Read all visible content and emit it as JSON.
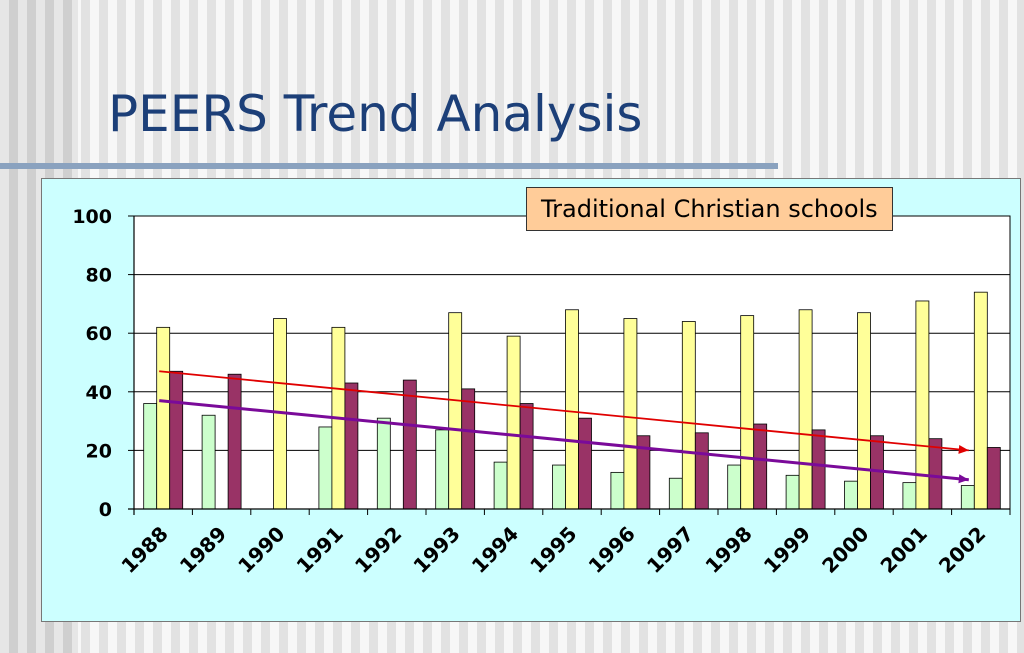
{
  "slide": {
    "title": "PEERS Trend Analysis"
  },
  "colors": {
    "background": "#f4f4f4",
    "title": "#1c3f78",
    "title_rule": "#8aa2bf",
    "plot_area": "#ccffff",
    "series": [
      "#ccffcc",
      "#ffff99",
      "#993366"
    ],
    "trend_red": "#e00000",
    "trend_purple": "#7a0a99",
    "annotation_fill": "#ffcc99"
  },
  "chart_data": {
    "type": "bar",
    "categories": [
      "1988",
      "1989",
      "1990",
      "1991",
      "1992",
      "1993",
      "1994",
      "1995",
      "1996",
      "1997",
      "1998",
      "1999",
      "2000",
      "2001",
      "2002"
    ],
    "series": [
      {
        "values": [
          36,
          32,
          null,
          28,
          31,
          27,
          16,
          15,
          12.5,
          10.5,
          15,
          11.5,
          9.5,
          9,
          8
        ]
      },
      {
        "values": [
          62,
          null,
          65,
          62,
          null,
          67,
          59,
          68,
          65,
          64,
          66,
          68,
          67,
          71,
          74
        ]
      },
      {
        "values": [
          47,
          46,
          null,
          43,
          44,
          41,
          36,
          31,
          25,
          26,
          29,
          27,
          25,
          24,
          21
        ]
      }
    ],
    "trendlines": [
      {
        "color": "red",
        "from": {
          "x": "1988",
          "y": 47
        },
        "to": {
          "x": "2002",
          "y": 20
        }
      },
      {
        "color": "purple",
        "from": {
          "x": "1988",
          "y": 37
        },
        "to": {
          "x": "2002",
          "y": 10
        }
      }
    ],
    "annotations": [
      "Traditional Christian schools"
    ],
    "ylim": [
      0,
      100
    ],
    "yticks": [
      0,
      20,
      40,
      60,
      80,
      100
    ],
    "grid": true,
    "legend": "none",
    "title": "",
    "xlabel": "",
    "ylabel": ""
  }
}
